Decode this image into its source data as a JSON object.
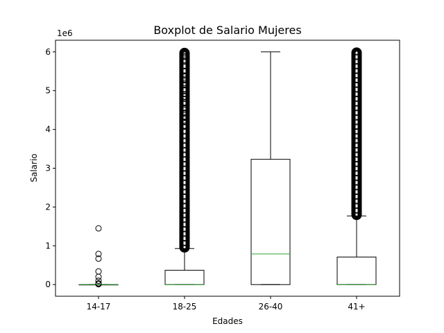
{
  "chart_data": {
    "type": "boxplot",
    "title": "Boxplot de Salario Mujeres",
    "xlabel": "Edades",
    "ylabel": "Salario",
    "y_offset_label": "1e6",
    "y_scale": 1000000,
    "ylim": [
      -300000,
      6300000
    ],
    "y_ticks": [
      0,
      1,
      2,
      3,
      4,
      5,
      6
    ],
    "grid": false,
    "colors": {
      "box": "#000000",
      "median": "#2ca02c",
      "flier": "#000000"
    },
    "categories": [
      "14-17",
      "18-25",
      "26-40",
      "41+"
    ],
    "boxes": [
      {
        "label": "14-17",
        "whisker_low": 0,
        "q1": 0,
        "median": 0,
        "q3": 0,
        "whisker_high": 0,
        "fliers": [
          1450000,
          790000,
          670000,
          340000,
          200000,
          100000,
          30000,
          10000
        ]
      },
      {
        "label": "18-25",
        "whisker_low": 0,
        "q1": 0,
        "median": 0,
        "q3": 370000,
        "whisker_high": 930000,
        "flier_band": [
          950000,
          5980000
        ],
        "fliers": [
          5980000,
          5900000,
          5800000,
          5500000,
          5300000,
          5200000,
          5000000,
          4850000,
          4700000,
          4500000,
          4400000,
          4300000,
          4200000,
          4100000
        ]
      },
      {
        "label": "26-40",
        "whisker_low": 0,
        "q1": 0,
        "median": 790000,
        "q3": 3230000,
        "whisker_high": 6000000,
        "fliers": []
      },
      {
        "label": "41+",
        "whisker_low": 0,
        "q1": 0,
        "median": 0,
        "q3": 710000,
        "whisker_high": 1770000,
        "flier_band": [
          1790000,
          5990000
        ],
        "fliers": []
      }
    ]
  }
}
